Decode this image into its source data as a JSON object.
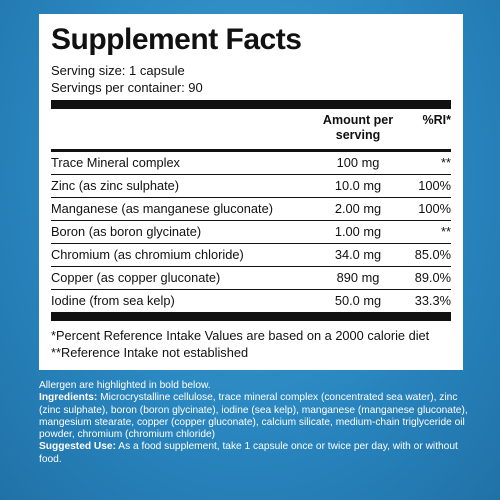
{
  "facts": {
    "title": "Supplement Facts",
    "serving_size": "Serving size: 1 capsule",
    "servings_per_container": "Servings per container: 90",
    "header_amount": "Amount per serving",
    "header_ri": "%RI*",
    "rows": [
      {
        "name": "Trace Mineral complex",
        "amount": "100 mg",
        "ri": "**"
      },
      {
        "name": "Zinc (as zinc sulphate)",
        "amount": "10.0 mg",
        "ri": "100%"
      },
      {
        "name": "Manganese (as manganese gluconate)",
        "amount": "2.00 mg",
        "ri": "100%"
      },
      {
        "name": "Boron (as boron glycinate)",
        "amount": "1.00 mg",
        "ri": "**"
      },
      {
        "name": "Chromium (as chromium chloride)",
        "amount": "34.0 mg",
        "ri": "85.0%"
      },
      {
        "name": "Copper (as copper gluconate)",
        "amount": "890 mg",
        "ri": "89.0%"
      },
      {
        "name": "Iodine (from sea kelp)",
        "amount": "50.0 mg",
        "ri": "33.3%"
      }
    ],
    "footnote_1": "*Percent Reference Intake Values are based on a 2000 calorie diet",
    "footnote_2": "**Reference Intake not established"
  },
  "info": {
    "allergen_note": "Allergen are highlighted in bold below.",
    "ingredients_label": "Ingredients:",
    "ingredients_text": " Microcrystalline cellulose, trace mineral complex (concentrated sea water), zinc (zinc sulphate), boron (boron glycinate), iodine (sea kelp), manganese (manganese gluconate), mangesium stearate, copper (copper gluconate), calcium silicate, medium-chain triglyceride oil powder, chromium (chromium chloride)",
    "suggested_use_label": "Suggested Use:",
    "suggested_use_text": " As a food supplement, take 1 capsule once or twice per day, with or without food."
  }
}
